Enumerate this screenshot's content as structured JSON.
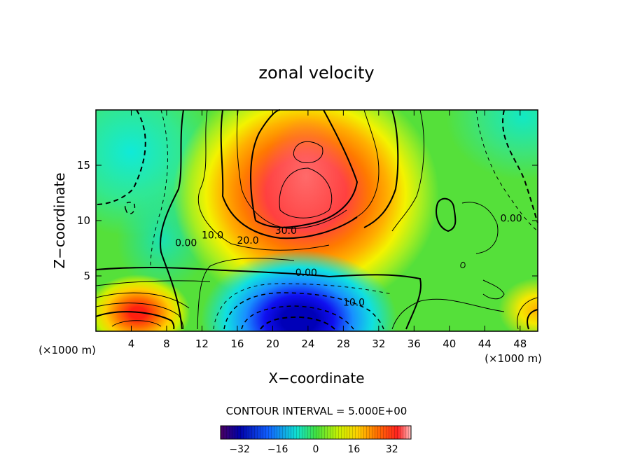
{
  "chart_data": {
    "type": "heatmap",
    "title": "zonal velocity",
    "xlabel": "X−coordinate",
    "ylabel": "Z−coordinate",
    "x_unit_left": "(×1000 m)",
    "x_unit_right": "(×1000 m)",
    "xlim": [
      0,
      50
    ],
    "ylim": [
      0,
      20
    ],
    "x_ticks": [
      4,
      8,
      12,
      16,
      20,
      24,
      28,
      32,
      36,
      40,
      44,
      48
    ],
    "y_ticks": [
      5,
      10,
      15
    ],
    "contour_interval_text": "CONTOUR INTERVAL = 5.000E+00",
    "contour_interval": 5,
    "contour_labels": [
      {
        "text": "30.0",
        "x": 21.5,
        "y": 8.8
      },
      {
        "text": "20.0",
        "x": 17.2,
        "y": 7.9
      },
      {
        "text": "10.0",
        "x": 13.2,
        "y": 8.4
      },
      {
        "text": "0.00",
        "x": 10.2,
        "y": 7.7
      },
      {
        "text": "0.00",
        "x": 23.8,
        "y": 5.0
      },
      {
        "text": "10.0",
        "x": 29.2,
        "y": 2.3
      },
      {
        "text": "0.00",
        "x": 47.0,
        "y": 9.9
      }
    ],
    "colorbar": {
      "min": -40,
      "max": 40,
      "ticks": [
        -32,
        -16,
        0,
        16,
        32
      ]
    },
    "features": [
      {
        "x": 23,
        "z": 13,
        "value": 35
      },
      {
        "x": 23,
        "z": 0.3,
        "value": -34
      },
      {
        "x": 5,
        "z": 0.8,
        "value": 28
      },
      {
        "x": 2,
        "z": 16,
        "value": -8
      },
      {
        "x": 49,
        "z": 18,
        "value": -8
      }
    ]
  }
}
